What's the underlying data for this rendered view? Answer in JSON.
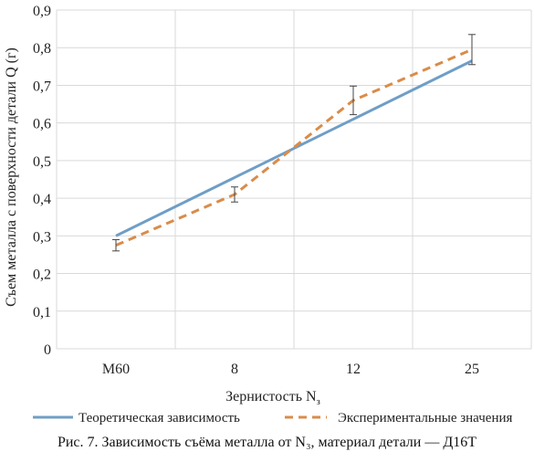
{
  "chart_data": {
    "type": "line",
    "categories": [
      "M60",
      "8",
      "12",
      "25"
    ],
    "series": [
      {
        "name": "Теоретическая зависимость",
        "values": [
          0.3,
          0.455,
          0.61,
          0.765
        ],
        "color": "#6f9ec6",
        "dashed": false
      },
      {
        "name": "Экспериментальные значения",
        "values": [
          0.275,
          0.41,
          0.66,
          0.795
        ],
        "error": [
          0.015,
          0.02,
          0.038,
          0.04
        ],
        "color": "#d98c4a",
        "dashed": true
      }
    ],
    "ylim": [
      0,
      0.9
    ],
    "yticks": [
      "0",
      "0,1",
      "0,2",
      "0,3",
      "0,4",
      "0,5",
      "0,6",
      "0,7",
      "0,8",
      "0,9"
    ],
    "ylabel": "Съем металла с поверхности детали Q (г)",
    "xlabel_main": "Зернистость N",
    "xlabel_sub": "з",
    "grid": true,
    "legend": "bottom"
  },
  "caption": "Рис. 7. Зависимость съёма металла от N₃, материал детали — Д16Т"
}
